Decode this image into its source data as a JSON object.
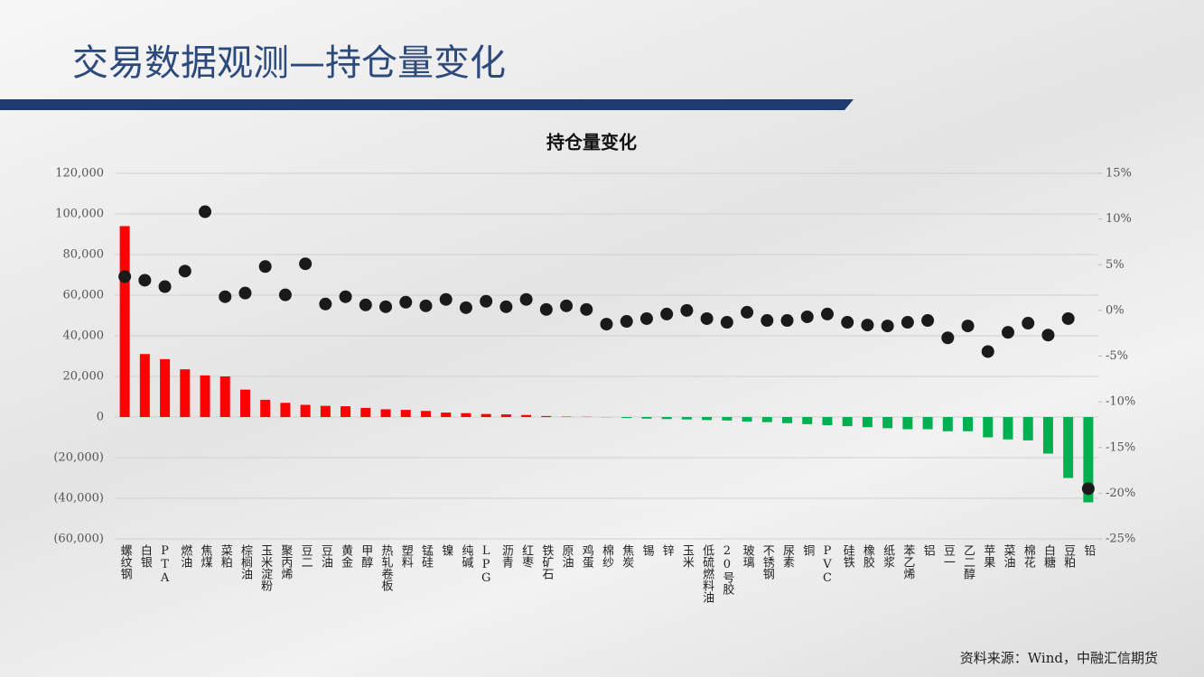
{
  "header": {
    "title": "交易数据观测—持仓量变化"
  },
  "chart_data": {
    "type": "bar_scatter",
    "title": "持仓量变化",
    "categories": [
      "螺纹钢",
      "白银",
      "PTA",
      "燃油",
      "焦煤",
      "菜粕",
      "棕榈油",
      "玉米淀粉",
      "聚丙烯",
      "豆二",
      "豆油",
      "黄金",
      "甲醇",
      "热轧卷板",
      "塑料",
      "锰硅",
      "镍",
      "纯碱",
      "LPG",
      "沥青",
      "红枣",
      "铁矿石",
      "原油",
      "鸡蛋",
      "棉纱",
      "焦炭",
      "锡",
      "锌",
      "玉米",
      "低硫燃料油",
      "20号胶",
      "玻璃",
      "不锈钢",
      "尿素",
      "铜",
      "PVC",
      "硅铁",
      "橡胶",
      "纸浆",
      "苯乙烯",
      "铝",
      "豆一",
      "乙二醇",
      "苹果",
      "菜油",
      "棉花",
      "白糖",
      "豆粕",
      "铅"
    ],
    "series": [
      {
        "values": [
          94000,
          31000,
          28500,
          23500,
          20500,
          20000,
          13500,
          8500,
          7000,
          6000,
          5500,
          5300,
          4500,
          3800,
          3500,
          3000,
          2200,
          1900,
          1500,
          1300,
          1000,
          500,
          200,
          100,
          -100,
          -500,
          -800,
          -1000,
          -1200,
          -1500,
          -1700,
          -2200,
          -2500,
          -3000,
          -3500,
          -4000,
          -4500,
          -5000,
          -5500,
          -6000,
          -6000,
          -7000,
          -7000,
          -10000,
          -11000,
          -11500,
          -18000,
          -30000,
          -42000
        ],
        "color": "#ff0000",
        "negative_color": "#00b050"
      },
      {
        "axis": "y2",
        "color": "#1a1a1a",
        "values": [
          3.7,
          3.3,
          2.6,
          4.3,
          10.8,
          1.5,
          1.9,
          4.8,
          1.7,
          5.1,
          0.7,
          1.5,
          0.6,
          0.4,
          0.9,
          0.5,
          1.2,
          0.3,
          1.0,
          0.4,
          1.2,
          0.1,
          0.5,
          0.1,
          -1.5,
          -1.2,
          -0.9,
          -0.4,
          0,
          -0.9,
          -1.3,
          -0.2,
          -1.1,
          -1.1,
          -0.7,
          -0.4,
          -1.3,
          -1.6,
          -1.7,
          -1.3,
          -1.1,
          -3.0,
          -1.7,
          -4.5,
          -2.4,
          -1.4,
          -2.7,
          -0.9,
          -19.5
        ]
      }
    ],
    "ylim": [
      -60000,
      120000
    ],
    "yticks": [
      {
        "value": -60000,
        "label": "(60,000)"
      },
      {
        "value": -40000,
        "label": "(40,000)"
      },
      {
        "value": -20000,
        "label": "(20,000)"
      },
      0,
      {
        "value": 20000,
        "label": "20,000"
      },
      {
        "value": 40000,
        "label": "40,000"
      },
      {
        "value": 60000,
        "label": "60,000"
      },
      {
        "value": 80000,
        "label": "80,000"
      },
      {
        "value": 100000,
        "label": "100,000"
      },
      {
        "value": 120000,
        "label": "120,000"
      }
    ],
    "y2lim": [
      -25,
      15
    ],
    "y2ticks": [
      {
        "value": -25,
        "label": "-25%"
      },
      {
        "value": -20,
        "label": "-20%"
      },
      {
        "value": -15,
        "label": "-15%"
      },
      {
        "value": -10,
        "label": "-10%"
      },
      {
        "value": -5,
        "label": "-5%"
      },
      {
        "value": 0,
        "label": "0%"
      },
      {
        "value": 5,
        "label": "5%"
      },
      {
        "value": 10,
        "label": "10%"
      },
      {
        "value": 15,
        "label": "15%"
      }
    ],
    "grid": true
  },
  "footer": {
    "source": "资料来源：Wind，中融汇信期货"
  }
}
